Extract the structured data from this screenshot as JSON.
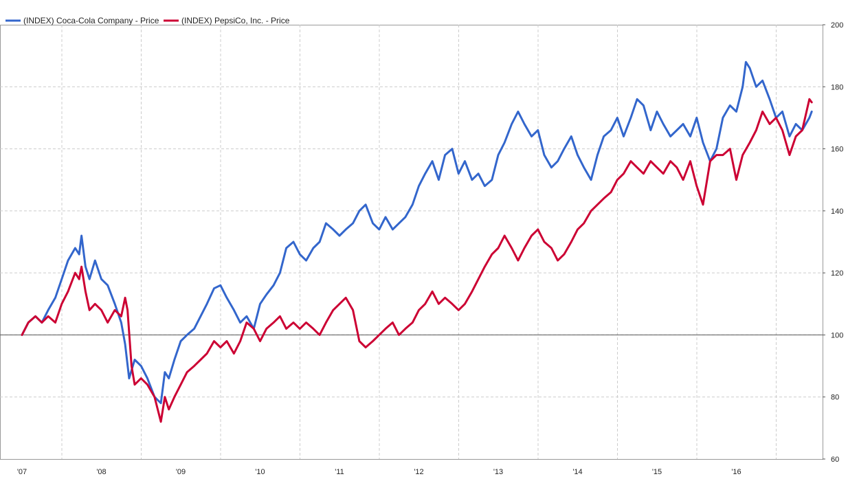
{
  "chart_data": {
    "type": "line",
    "title": "",
    "xlabel": "",
    "ylabel": "",
    "y_axis_side": "right",
    "ylim": [
      60,
      200
    ],
    "xlim": [
      2007.0,
      2016.95
    ],
    "y_ticks": [
      60,
      80,
      100,
      120,
      140,
      160,
      180,
      200
    ],
    "x_ticks": [
      {
        "label": "'07",
        "x": 2007.0
      },
      {
        "label": "'08",
        "x": 2008.0
      },
      {
        "label": "'09",
        "x": 2009.0
      },
      {
        "label": "'10",
        "x": 2010.0
      },
      {
        "label": "'11",
        "x": 2011.0
      },
      {
        "label": "'12",
        "x": 2012.0
      },
      {
        "label": "'13",
        "x": 2013.0
      },
      {
        "label": "'14",
        "x": 2014.0
      },
      {
        "label": "'15",
        "x": 2015.0
      },
      {
        "label": "'16",
        "x": 2016.0
      }
    ],
    "baseline": 100,
    "grid": true,
    "legend_position": "top-left",
    "series": [
      {
        "name": "(INDEX) Coca-Cola Company - Price",
        "color": "#3366cc",
        "points": [
          [
            2007.0,
            100
          ],
          [
            2007.08,
            104
          ],
          [
            2007.17,
            106
          ],
          [
            2007.25,
            104
          ],
          [
            2007.33,
            108
          ],
          [
            2007.42,
            112
          ],
          [
            2007.5,
            118
          ],
          [
            2007.58,
            124
          ],
          [
            2007.67,
            128
          ],
          [
            2007.72,
            126
          ],
          [
            2007.75,
            132
          ],
          [
            2007.8,
            122
          ],
          [
            2007.85,
            118
          ],
          [
            2007.92,
            124
          ],
          [
            2008.0,
            118
          ],
          [
            2008.08,
            116
          ],
          [
            2008.17,
            110
          ],
          [
            2008.25,
            104
          ],
          [
            2008.3,
            97
          ],
          [
            2008.35,
            86
          ],
          [
            2008.42,
            92
          ],
          [
            2008.5,
            90
          ],
          [
            2008.58,
            86
          ],
          [
            2008.67,
            80
          ],
          [
            2008.75,
            78
          ],
          [
            2008.8,
            88
          ],
          [
            2008.85,
            86
          ],
          [
            2008.92,
            92
          ],
          [
            2009.0,
            98
          ],
          [
            2009.08,
            100
          ],
          [
            2009.17,
            102
          ],
          [
            2009.25,
            106
          ],
          [
            2009.33,
            110
          ],
          [
            2009.42,
            115
          ],
          [
            2009.5,
            116
          ],
          [
            2009.58,
            112
          ],
          [
            2009.67,
            108
          ],
          [
            2009.75,
            104
          ],
          [
            2009.83,
            106
          ],
          [
            2009.92,
            102
          ],
          [
            2010.0,
            110
          ],
          [
            2010.08,
            113
          ],
          [
            2010.17,
            116
          ],
          [
            2010.25,
            120
          ],
          [
            2010.33,
            128
          ],
          [
            2010.42,
            130
          ],
          [
            2010.5,
            126
          ],
          [
            2010.58,
            124
          ],
          [
            2010.67,
            128
          ],
          [
            2010.75,
            130
          ],
          [
            2010.83,
            136
          ],
          [
            2010.92,
            134
          ],
          [
            2011.0,
            132
          ],
          [
            2011.08,
            134
          ],
          [
            2011.17,
            136
          ],
          [
            2011.25,
            140
          ],
          [
            2011.33,
            142
          ],
          [
            2011.42,
            136
          ],
          [
            2011.5,
            134
          ],
          [
            2011.58,
            138
          ],
          [
            2011.67,
            134
          ],
          [
            2011.75,
            136
          ],
          [
            2011.83,
            138
          ],
          [
            2011.92,
            142
          ],
          [
            2012.0,
            148
          ],
          [
            2012.08,
            152
          ],
          [
            2012.17,
            156
          ],
          [
            2012.25,
            150
          ],
          [
            2012.33,
            158
          ],
          [
            2012.42,
            160
          ],
          [
            2012.5,
            152
          ],
          [
            2012.58,
            156
          ],
          [
            2012.67,
            150
          ],
          [
            2012.75,
            152
          ],
          [
            2012.83,
            148
          ],
          [
            2012.92,
            150
          ],
          [
            2013.0,
            158
          ],
          [
            2013.08,
            162
          ],
          [
            2013.17,
            168
          ],
          [
            2013.25,
            172
          ],
          [
            2013.33,
            168
          ],
          [
            2013.42,
            164
          ],
          [
            2013.5,
            166
          ],
          [
            2013.58,
            158
          ],
          [
            2013.67,
            154
          ],
          [
            2013.75,
            156
          ],
          [
            2013.83,
            160
          ],
          [
            2013.92,
            164
          ],
          [
            2014.0,
            158
          ],
          [
            2014.08,
            154
          ],
          [
            2014.17,
            150
          ],
          [
            2014.25,
            158
          ],
          [
            2014.33,
            164
          ],
          [
            2014.42,
            166
          ],
          [
            2014.5,
            170
          ],
          [
            2014.58,
            164
          ],
          [
            2014.67,
            170
          ],
          [
            2014.75,
            176
          ],
          [
            2014.83,
            174
          ],
          [
            2014.92,
            166
          ],
          [
            2015.0,
            172
          ],
          [
            2015.08,
            168
          ],
          [
            2015.17,
            164
          ],
          [
            2015.25,
            166
          ],
          [
            2015.33,
            168
          ],
          [
            2015.42,
            164
          ],
          [
            2015.5,
            170
          ],
          [
            2015.58,
            162
          ],
          [
            2015.67,
            156
          ],
          [
            2015.75,
            160
          ],
          [
            2015.83,
            170
          ],
          [
            2015.92,
            174
          ],
          [
            2016.0,
            172
          ],
          [
            2016.08,
            180
          ],
          [
            2016.12,
            188
          ],
          [
            2016.17,
            186
          ],
          [
            2016.25,
            180
          ],
          [
            2016.33,
            182
          ],
          [
            2016.42,
            176
          ],
          [
            2016.5,
            170
          ],
          [
            2016.58,
            172
          ],
          [
            2016.67,
            164
          ],
          [
            2016.75,
            168
          ],
          [
            2016.83,
            166
          ],
          [
            2016.92,
            170
          ],
          [
            2016.95,
            172
          ]
        ]
      },
      {
        "name": "(INDEX) PepsiCo, Inc. - Price",
        "color": "#cc0033",
        "points": [
          [
            2007.0,
            100
          ],
          [
            2007.08,
            104
          ],
          [
            2007.17,
            106
          ],
          [
            2007.25,
            104
          ],
          [
            2007.33,
            106
          ],
          [
            2007.42,
            104
          ],
          [
            2007.5,
            110
          ],
          [
            2007.58,
            114
          ],
          [
            2007.67,
            120
          ],
          [
            2007.72,
            118
          ],
          [
            2007.75,
            122
          ],
          [
            2007.8,
            114
          ],
          [
            2007.85,
            108
          ],
          [
            2007.92,
            110
          ],
          [
            2008.0,
            108
          ],
          [
            2008.08,
            104
          ],
          [
            2008.17,
            108
          ],
          [
            2008.25,
            106
          ],
          [
            2008.3,
            112
          ],
          [
            2008.33,
            108
          ],
          [
            2008.38,
            90
          ],
          [
            2008.42,
            84
          ],
          [
            2008.5,
            86
          ],
          [
            2008.58,
            84
          ],
          [
            2008.67,
            80
          ],
          [
            2008.75,
            72
          ],
          [
            2008.8,
            80
          ],
          [
            2008.85,
            76
          ],
          [
            2008.92,
            80
          ],
          [
            2009.0,
            84
          ],
          [
            2009.08,
            88
          ],
          [
            2009.17,
            90
          ],
          [
            2009.25,
            92
          ],
          [
            2009.33,
            94
          ],
          [
            2009.42,
            98
          ],
          [
            2009.5,
            96
          ],
          [
            2009.58,
            98
          ],
          [
            2009.67,
            94
          ],
          [
            2009.75,
            98
          ],
          [
            2009.83,
            104
          ],
          [
            2009.92,
            102
          ],
          [
            2010.0,
            98
          ],
          [
            2010.08,
            102
          ],
          [
            2010.17,
            104
          ],
          [
            2010.25,
            106
          ],
          [
            2010.33,
            102
          ],
          [
            2010.42,
            104
          ],
          [
            2010.5,
            102
          ],
          [
            2010.58,
            104
          ],
          [
            2010.67,
            102
          ],
          [
            2010.75,
            100
          ],
          [
            2010.83,
            104
          ],
          [
            2010.92,
            108
          ],
          [
            2011.0,
            110
          ],
          [
            2011.08,
            112
          ],
          [
            2011.17,
            108
          ],
          [
            2011.25,
            98
          ],
          [
            2011.33,
            96
          ],
          [
            2011.42,
            98
          ],
          [
            2011.5,
            100
          ],
          [
            2011.58,
            102
          ],
          [
            2011.67,
            104
          ],
          [
            2011.75,
            100
          ],
          [
            2011.83,
            102
          ],
          [
            2011.92,
            104
          ],
          [
            2012.0,
            108
          ],
          [
            2012.08,
            110
          ],
          [
            2012.17,
            114
          ],
          [
            2012.25,
            110
          ],
          [
            2012.33,
            112
          ],
          [
            2012.42,
            110
          ],
          [
            2012.5,
            108
          ],
          [
            2012.58,
            110
          ],
          [
            2012.67,
            114
          ],
          [
            2012.75,
            118
          ],
          [
            2012.83,
            122
          ],
          [
            2012.92,
            126
          ],
          [
            2013.0,
            128
          ],
          [
            2013.08,
            132
          ],
          [
            2013.17,
            128
          ],
          [
            2013.25,
            124
          ],
          [
            2013.33,
            128
          ],
          [
            2013.42,
            132
          ],
          [
            2013.5,
            134
          ],
          [
            2013.58,
            130
          ],
          [
            2013.67,
            128
          ],
          [
            2013.75,
            124
          ],
          [
            2013.83,
            126
          ],
          [
            2013.92,
            130
          ],
          [
            2014.0,
            134
          ],
          [
            2014.08,
            136
          ],
          [
            2014.17,
            140
          ],
          [
            2014.25,
            142
          ],
          [
            2014.33,
            144
          ],
          [
            2014.42,
            146
          ],
          [
            2014.5,
            150
          ],
          [
            2014.58,
            152
          ],
          [
            2014.67,
            156
          ],
          [
            2014.75,
            154
          ],
          [
            2014.83,
            152
          ],
          [
            2014.92,
            156
          ],
          [
            2015.0,
            154
          ],
          [
            2015.08,
            152
          ],
          [
            2015.17,
            156
          ],
          [
            2015.25,
            154
          ],
          [
            2015.33,
            150
          ],
          [
            2015.42,
            156
          ],
          [
            2015.5,
            148
          ],
          [
            2015.58,
            142
          ],
          [
            2015.67,
            156
          ],
          [
            2015.75,
            158
          ],
          [
            2015.83,
            158
          ],
          [
            2015.92,
            160
          ],
          [
            2016.0,
            150
          ],
          [
            2016.08,
            158
          ],
          [
            2016.17,
            162
          ],
          [
            2016.25,
            166
          ],
          [
            2016.33,
            172
          ],
          [
            2016.42,
            168
          ],
          [
            2016.5,
            170
          ],
          [
            2016.58,
            166
          ],
          [
            2016.67,
            158
          ],
          [
            2016.75,
            164
          ],
          [
            2016.83,
            166
          ],
          [
            2016.92,
            176
          ],
          [
            2016.95,
            175
          ]
        ]
      }
    ]
  }
}
